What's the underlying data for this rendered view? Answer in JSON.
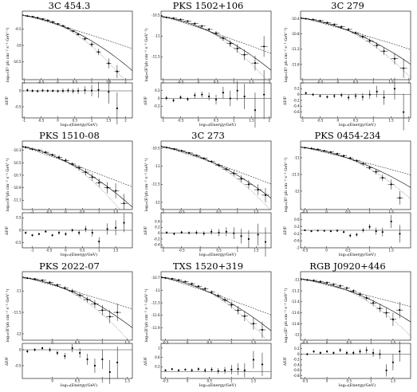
{
  "labels": {
    "ylabel": "log₁₀(E² ph cm⁻² s⁻¹ GeV⁻¹)",
    "ylabel_alt": "log₁₀(E²ph cm⁻² s⁻¹ GeV⁻¹)",
    "xlabel": "log₁₀(Energy/GeV)",
    "resid_label": "ΔF/F"
  },
  "chart_data": [
    {
      "type": "scatter",
      "title": "3C 454.3",
      "xlim": [
        -1.05,
        2.2
      ],
      "ylim": [
        -11.05,
        -8.95
      ],
      "xticks": [
        -1,
        -0.5,
        0,
        0.5,
        1,
        1.5,
        2
      ],
      "yticks": [
        -9.5,
        -10,
        -10.5
      ],
      "x": [
        -0.9,
        -0.75,
        -0.6,
        -0.45,
        -0.3,
        -0.15,
        0,
        0.15,
        0.3,
        0.45,
        0.6,
        0.8,
        1.0,
        1.2,
        1.5,
        1.75
      ],
      "y": [
        -9.1,
        -9.12,
        -9.15,
        -9.19,
        -9.23,
        -9.28,
        -9.34,
        -9.4,
        -9.47,
        -9.56,
        -9.66,
        -9.8,
        -9.97,
        -10.2,
        -10.55,
        -10.8
      ],
      "yerr": [
        0.02,
        0.02,
        0.02,
        0.02,
        0.02,
        0.02,
        0.02,
        0.03,
        0.03,
        0.03,
        0.04,
        0.05,
        0.07,
        0.1,
        0.15,
        0.2
      ],
      "residuals": [
        0.02,
        0,
        -0.01,
        0.01,
        0,
        0,
        -0.01,
        0,
        0.01,
        -0.01,
        0,
        0.02,
        0.01,
        0.03,
        -0.03,
        -0.55
      ],
      "rylim": [
        -0.85,
        0.25
      ],
      "ryticks": [
        0,
        -0.5
      ]
    },
    {
      "type": "scatter",
      "title": "PKS 1502+106",
      "xlim": [
        -1.05,
        2.05
      ],
      "ylim": [
        -12.05,
        -10.4
      ],
      "xticks": [
        -1,
        -0.5,
        0,
        0.5,
        1,
        1.5,
        2
      ],
      "yticks": [
        -10.5,
        -11,
        -11.5
      ],
      "x": [
        -0.9,
        -0.7,
        -0.5,
        -0.3,
        -0.1,
        0.1,
        0.3,
        0.5,
        0.7,
        0.9,
        1.1,
        1.3,
        1.6,
        1.85
      ],
      "y": [
        -10.55,
        -10.57,
        -10.6,
        -10.64,
        -10.7,
        -10.76,
        -10.84,
        -10.93,
        -11.05,
        -11.18,
        -11.3,
        -11.45,
        -11.65,
        -11.25
      ],
      "yerr": [
        0.02,
        0.02,
        0.02,
        0.02,
        0.03,
        0.03,
        0.04,
        0.05,
        0.06,
        0.08,
        0.1,
        0.13,
        0.18,
        0.25
      ],
      "residuals": [
        0.01,
        -0.05,
        0.03,
        -0.02,
        0.08,
        0.1,
        0.05,
        -0.03,
        0.15,
        0,
        0.2,
        0.05,
        -0.3,
        0.1
      ],
      "rylim": [
        -0.5,
        0.4
      ],
      "ryticks": [
        0.2,
        0,
        -0.2
      ]
    },
    {
      "type": "scatter",
      "title": "3C 279",
      "xlim": [
        -1.05,
        2.05
      ],
      "ylim": [
        -12.0,
        -10.2
      ],
      "xticks": [
        -1,
        -0.5,
        0,
        0.5,
        1,
        1.5,
        2
      ],
      "yticks": [
        -10.4,
        -10.8,
        -11.2,
        -11.6
      ],
      "x": [
        -0.9,
        -0.7,
        -0.5,
        -0.3,
        -0.1,
        0.1,
        0.3,
        0.5,
        0.7,
        0.9,
        1.1,
        1.3,
        1.6,
        1.85
      ],
      "y": [
        -10.4,
        -10.42,
        -10.45,
        -10.5,
        -10.55,
        -10.61,
        -10.68,
        -10.77,
        -10.87,
        -10.98,
        -11.1,
        -11.25,
        -11.45,
        -11.7
      ],
      "yerr": [
        0.02,
        0.02,
        0.02,
        0.02,
        0.03,
        0.03,
        0.04,
        0.04,
        0.05,
        0.06,
        0.08,
        0.1,
        0.15,
        0.25
      ],
      "residuals": [
        0.05,
        0,
        -0.05,
        -0.08,
        -0.05,
        -0.02,
        -0.1,
        -0.05,
        -0.08,
        0,
        0.1,
        -0.1,
        0.2,
        -0.6
      ],
      "rylim": [
        -0.8,
        0.4
      ],
      "ryticks": [
        0.2,
        0,
        -0.2,
        -0.4,
        -0.6
      ]
    },
    {
      "type": "scatter",
      "title": "PKS 1510-08",
      "xlim": [
        -1.3,
        2.0
      ],
      "ylim": [
        -11.25,
        -10.15
      ],
      "xticks": [
        -1,
        -0.5,
        0,
        0.5,
        1,
        1.5
      ],
      "yticks": [
        -10.3,
        -10.5,
        -10.7,
        -10.9,
        -11.1
      ],
      "x": [
        -1.2,
        -1.0,
        -0.8,
        -0.6,
        -0.4,
        -0.2,
        0,
        0.2,
        0.4,
        0.6,
        0.8,
        1.0,
        1.25,
        1.5,
        1.75
      ],
      "y": [
        -10.25,
        -10.28,
        -10.3,
        -10.33,
        -10.37,
        -10.41,
        -10.46,
        -10.52,
        -10.58,
        -10.65,
        -10.73,
        -10.82,
        -10.9,
        -10.95,
        -11.15
      ],
      "yerr": [
        0.02,
        0.02,
        0.02,
        0.02,
        0.02,
        0.03,
        0.03,
        0.03,
        0.04,
        0.05,
        0.06,
        0.07,
        0.09,
        0.12,
        0.15
      ],
      "residuals": [
        -0.1,
        -0.2,
        -0.15,
        -0.05,
        -0.2,
        -0.1,
        -0.15,
        0,
        -0.1,
        0.05,
        -0.1,
        -0.45,
        0.05,
        0.1,
        0.3
      ],
      "rylim": [
        -0.7,
        0.7
      ],
      "ryticks": [
        0.5,
        0,
        -0.5
      ]
    },
    {
      "type": "scatter",
      "title": "3C 273",
      "xlim": [
        -1.05,
        1.9
      ],
      "ylim": [
        -12.2,
        -10.3
      ],
      "xticks": [
        -1,
        -0.5,
        0,
        0.5,
        1,
        1.5
      ],
      "yticks": [
        -10.5,
        -11,
        -11.5,
        -12
      ],
      "x": [
        -0.9,
        -0.7,
        -0.5,
        -0.3,
        -0.1,
        0.1,
        0.3,
        0.5,
        0.7,
        0.9,
        1.1,
        1.3,
        1.55,
        1.75
      ],
      "y": [
        -10.48,
        -10.52,
        -10.57,
        -10.63,
        -10.7,
        -10.78,
        -10.87,
        -10.97,
        -11.08,
        -11.2,
        -11.35,
        -11.5,
        -11.65,
        -11.8
      ],
      "yerr": [
        0.02,
        0.02,
        0.02,
        0.02,
        0.03,
        0.03,
        0.04,
        0.05,
        0.06,
        0.08,
        0.1,
        0.12,
        0.15,
        0.2
      ],
      "residuals": [
        0.02,
        -0.02,
        0.03,
        0.01,
        0.02,
        -0.01,
        0.05,
        0.02,
        0.05,
        0,
        -0.1,
        -0.2,
        -0.05,
        -0.3
      ],
      "rylim": [
        -0.5,
        0.7
      ],
      "ryticks": [
        0.4,
        0.2,
        0,
        -0.2,
        -0.4
      ]
    },
    {
      "type": "scatter",
      "title": "PKS 0454-234",
      "xlim": [
        -0.6,
        1.95
      ],
      "ylim": [
        -12.55,
        -10.5
      ],
      "xticks": [
        -0.5,
        0,
        0.5,
        1,
        1.5
      ],
      "yticks": [
        -11,
        -11.5,
        -12
      ],
      "x": [
        -0.5,
        -0.35,
        -0.2,
        -0.05,
        0.1,
        0.25,
        0.4,
        0.55,
        0.7,
        0.85,
        1.0,
        1.15,
        1.3,
        1.5,
        1.7
      ],
      "y": [
        -10.7,
        -10.72,
        -10.75,
        -10.79,
        -10.83,
        -10.88,
        -10.94,
        -11.01,
        -11.09,
        -11.18,
        -11.3,
        -11.42,
        -11.6,
        -11.8,
        -12.2
      ],
      "yerr": [
        0.02,
        0.02,
        0.02,
        0.02,
        0.02,
        0.03,
        0.03,
        0.04,
        0.04,
        0.05,
        0.06,
        0.08,
        0.1,
        0.15,
        0.2
      ],
      "residuals": [
        0,
        -0.05,
        -0.02,
        -0.03,
        -0.05,
        -0.02,
        -0.1,
        -0.3,
        -0.25,
        0,
        0.2,
        -0.05,
        -0.1,
        0.5,
        -0.2
      ],
      "rylim": [
        -1.0,
        1.0
      ],
      "ryticks": [
        0.6,
        0.2,
        -0.2,
        -0.6,
        -1.0
      ]
    },
    {
      "type": "scatter",
      "title": "PKS 2022-07",
      "xlim": [
        -0.6,
        1.6
      ],
      "ylim": [
        -12.15,
        -10.55
      ],
      "xticks": [
        0,
        0.5,
        1,
        1.5
      ],
      "yticks": [
        -11,
        -11.5,
        -12
      ],
      "x": [
        -0.5,
        -0.35,
        -0.2,
        -0.05,
        0.1,
        0.25,
        0.4,
        0.55,
        0.7,
        0.85,
        1.0,
        1.15,
        1.3
      ],
      "y": [
        -10.7,
        -10.72,
        -10.75,
        -10.8,
        -10.86,
        -10.93,
        -11.0,
        -11.1,
        -11.2,
        -11.3,
        -11.45,
        -11.6,
        -11.5
      ],
      "yerr": [
        0.02,
        0.02,
        0.02,
        0.03,
        0.03,
        0.04,
        0.05,
        0.06,
        0.07,
        0.09,
        0.12,
        0.15,
        0.2
      ],
      "residuals": [
        -0.05,
        0,
        0.05,
        0,
        -0.1,
        -0.2,
        0.05,
        -0.1,
        -0.3,
        -0.5,
        -0.3,
        -0.7,
        -0.4
      ],
      "rylim": [
        -0.9,
        0.2
      ],
      "ryticks": [
        0,
        -0.5
      ]
    },
    {
      "type": "scatter",
      "title": "TXS 1520+319",
      "xlim": [
        -0.6,
        1.9
      ],
      "ylim": [
        -12.2,
        -10.55
      ],
      "xticks": [
        -0.5,
        0,
        0.5,
        1,
        1.5
      ],
      "yticks": [
        -10.7,
        -11,
        -11.3,
        -11.6,
        -11.9
      ],
      "x": [
        -0.5,
        -0.35,
        -0.2,
        -0.05,
        0.1,
        0.25,
        0.4,
        0.55,
        0.7,
        0.85,
        1.0,
        1.15,
        1.3,
        1.5,
        1.7
      ],
      "y": [
        -10.7,
        -10.72,
        -10.75,
        -10.79,
        -10.84,
        -10.9,
        -10.96,
        -11.04,
        -11.13,
        -11.23,
        -11.35,
        -11.48,
        -11.62,
        -11.8,
        -11.95
      ],
      "yerr": [
        0.02,
        0.02,
        0.02,
        0.02,
        0.03,
        0.03,
        0.04,
        0.04,
        0.05,
        0.06,
        0.08,
        0.1,
        0.12,
        0.15,
        0.2
      ],
      "residuals": [
        0.05,
        0.1,
        0.05,
        0.08,
        0.05,
        0.1,
        0.05,
        0.08,
        0.02,
        0.05,
        0.08,
        0.1,
        0.05,
        0.5,
        0.3
      ],
      "rylim": [
        -0.3,
        1.2
      ],
      "ryticks": [
        1,
        0.6,
        0.2
      ]
    },
    {
      "type": "scatter",
      "title": "RGB J0920+446",
      "xlim": [
        -0.6,
        1.9
      ],
      "ylim": [
        -12.1,
        -10.85
      ],
      "xticks": [
        -0.5,
        0,
        0.5,
        1,
        1.5
      ],
      "yticks": [
        -11,
        -11.2,
        -11.4,
        -11.6,
        -11.8,
        -12
      ],
      "x": [
        -0.45,
        -0.3,
        -0.15,
        0,
        0.15,
        0.3,
        0.45,
        0.6,
        0.75,
        0.9,
        1.05,
        1.2,
        1.35,
        1.5,
        1.65
      ],
      "y": [
        -11.0,
        -11.01,
        -11.03,
        -11.05,
        -11.08,
        -11.11,
        -11.15,
        -11.2,
        -11.26,
        -11.33,
        -11.42,
        -11.52,
        -11.6,
        -11.72,
        -11.55
      ],
      "yerr": [
        0.02,
        0.02,
        0.02,
        0.02,
        0.02,
        0.03,
        0.03,
        0.03,
        0.04,
        0.05,
        0.06,
        0.07,
        0.09,
        0.12,
        0.15
      ],
      "residuals": [
        0,
        0.1,
        0.05,
        0.1,
        0.05,
        0.15,
        0.05,
        0.05,
        0.1,
        0.15,
        0.05,
        0,
        -0.6,
        -0.3,
        0.1
      ],
      "rylim": [
        -0.9,
        0.4
      ],
      "ryticks": [
        0.2,
        0,
        -0.2,
        -0.4,
        -0.6,
        -0.8
      ]
    }
  ]
}
